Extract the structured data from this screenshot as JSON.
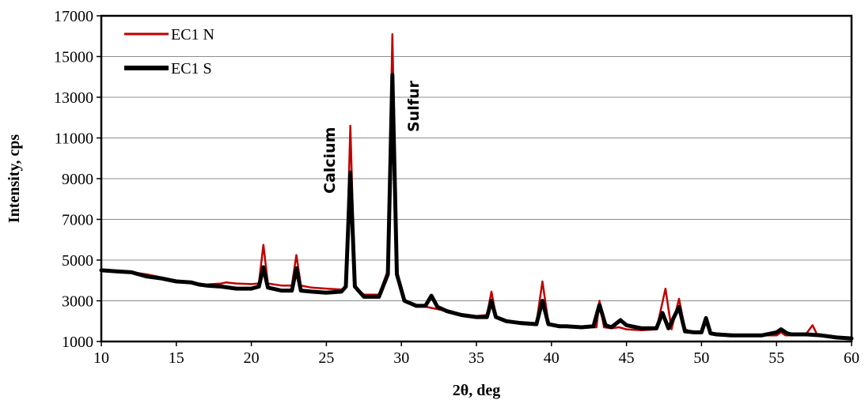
{
  "chart_data": {
    "type": "line",
    "title": "",
    "xlabel": "2θ, deg",
    "ylabel": "Intensity, cps",
    "xlim": [
      10,
      60
    ],
    "ylim": [
      1000,
      17000
    ],
    "x_ticks": [
      10,
      15,
      20,
      25,
      30,
      35,
      40,
      45,
      50,
      55,
      60
    ],
    "y_ticks": [
      1000,
      3000,
      5000,
      7000,
      9000,
      11000,
      13000,
      15000,
      17000
    ],
    "grid": "horizontal",
    "legend": "top-left",
    "annotations": [
      "Calcium",
      "Sulfur"
    ],
    "series": [
      {
        "name": "EC1 N",
        "color": "#c00000",
        "points": [
          [
            10,
            4500
          ],
          [
            11,
            4450
          ],
          [
            12,
            4400
          ],
          [
            13,
            4300
          ],
          [
            14,
            4150
          ],
          [
            15,
            4000
          ],
          [
            16,
            3900
          ],
          [
            17,
            3800
          ],
          [
            18,
            3850
          ],
          [
            18.3,
            3900
          ],
          [
            19,
            3850
          ],
          [
            20,
            3820
          ],
          [
            20.5,
            3850
          ],
          [
            20.8,
            5750
          ],
          [
            21.1,
            3850
          ],
          [
            22,
            3750
          ],
          [
            22.7,
            3750
          ],
          [
            23,
            5250
          ],
          [
            23.3,
            3750
          ],
          [
            24,
            3650
          ],
          [
            25,
            3600
          ],
          [
            26,
            3550
          ],
          [
            26.3,
            3700
          ],
          [
            26.6,
            11600
          ],
          [
            26.9,
            3700
          ],
          [
            27.5,
            3300
          ],
          [
            28.5,
            3300
          ],
          [
            29.1,
            4500
          ],
          [
            29.4,
            16100
          ],
          [
            29.7,
            4500
          ],
          [
            30.2,
            3000
          ],
          [
            31,
            2800
          ],
          [
            32,
            2650
          ],
          [
            33,
            2500
          ],
          [
            34,
            2350
          ],
          [
            35,
            2250
          ],
          [
            35.7,
            2300
          ],
          [
            36,
            3450
          ],
          [
            36.3,
            2250
          ],
          [
            37,
            2000
          ],
          [
            38,
            1950
          ],
          [
            39,
            1900
          ],
          [
            39.4,
            3950
          ],
          [
            39.8,
            1900
          ],
          [
            40.5,
            1800
          ],
          [
            41,
            1750
          ],
          [
            42,
            1700
          ],
          [
            43,
            1700
          ],
          [
            43.2,
            3000
          ],
          [
            43.5,
            1700
          ],
          [
            44,
            1650
          ],
          [
            44.5,
            1700
          ],
          [
            45,
            1600
          ],
          [
            46,
            1550
          ],
          [
            47,
            1600
          ],
          [
            47.6,
            3600
          ],
          [
            48,
            1600
          ],
          [
            48.5,
            3100
          ],
          [
            48.9,
            1600
          ],
          [
            49.5,
            1450
          ],
          [
            50,
            1450
          ],
          [
            50.3,
            1900
          ],
          [
            50.6,
            1400
          ],
          [
            51,
            1400
          ],
          [
            52,
            1350
          ],
          [
            53,
            1300
          ],
          [
            54,
            1300
          ],
          [
            55,
            1300
          ],
          [
            55.3,
            1450
          ],
          [
            55.6,
            1300
          ],
          [
            56,
            1300
          ],
          [
            57,
            1400
          ],
          [
            57.4,
            1800
          ],
          [
            57.7,
            1350
          ],
          [
            58,
            1300
          ],
          [
            59,
            1200
          ],
          [
            60,
            1150
          ]
        ]
      },
      {
        "name": "EC1 S",
        "color": "#000000",
        "points": [
          [
            10,
            4500
          ],
          [
            11,
            4450
          ],
          [
            12,
            4400
          ],
          [
            13,
            4200
          ],
          [
            14,
            4100
          ],
          [
            15,
            3950
          ],
          [
            16,
            3900
          ],
          [
            16.5,
            3800
          ],
          [
            17,
            3750
          ],
          [
            18,
            3700
          ],
          [
            19,
            3600
          ],
          [
            20,
            3600
          ],
          [
            20.5,
            3700
          ],
          [
            20.8,
            4650
          ],
          [
            21.1,
            3650
          ],
          [
            22,
            3500
          ],
          [
            22.7,
            3500
          ],
          [
            23,
            4600
          ],
          [
            23.3,
            3500
          ],
          [
            24,
            3450
          ],
          [
            25,
            3400
          ],
          [
            26,
            3450
          ],
          [
            26.3,
            3700
          ],
          [
            26.6,
            9300
          ],
          [
            26.9,
            3700
          ],
          [
            27.5,
            3200
          ],
          [
            28.5,
            3200
          ],
          [
            29.1,
            4300
          ],
          [
            29.4,
            14100
          ],
          [
            29.7,
            4300
          ],
          [
            30.2,
            3000
          ],
          [
            31,
            2750
          ],
          [
            31.6,
            2750
          ],
          [
            32,
            3250
          ],
          [
            32.4,
            2700
          ],
          [
            33,
            2500
          ],
          [
            34,
            2300
          ],
          [
            35,
            2200
          ],
          [
            35.7,
            2200
          ],
          [
            36,
            3000
          ],
          [
            36.3,
            2200
          ],
          [
            37,
            2000
          ],
          [
            38,
            1900
          ],
          [
            39,
            1850
          ],
          [
            39.4,
            3000
          ],
          [
            39.8,
            1850
          ],
          [
            40.5,
            1750
          ],
          [
            41,
            1750
          ],
          [
            42,
            1700
          ],
          [
            42.8,
            1750
          ],
          [
            43.2,
            2800
          ],
          [
            43.6,
            1800
          ],
          [
            44,
            1700
          ],
          [
            44.6,
            2050
          ],
          [
            45,
            1800
          ],
          [
            46,
            1650
          ],
          [
            47,
            1650
          ],
          [
            47.4,
            2400
          ],
          [
            47.8,
            1650
          ],
          [
            48.5,
            2700
          ],
          [
            48.9,
            1500
          ],
          [
            49.5,
            1450
          ],
          [
            50,
            1450
          ],
          [
            50.3,
            2150
          ],
          [
            50.6,
            1400
          ],
          [
            51,
            1350
          ],
          [
            52,
            1300
          ],
          [
            53,
            1300
          ],
          [
            54,
            1300
          ],
          [
            55,
            1450
          ],
          [
            55.3,
            1600
          ],
          [
            55.7,
            1400
          ],
          [
            56,
            1350
          ],
          [
            57,
            1350
          ],
          [
            58,
            1300
          ],
          [
            59,
            1200
          ],
          [
            60,
            1150
          ]
        ]
      }
    ]
  }
}
